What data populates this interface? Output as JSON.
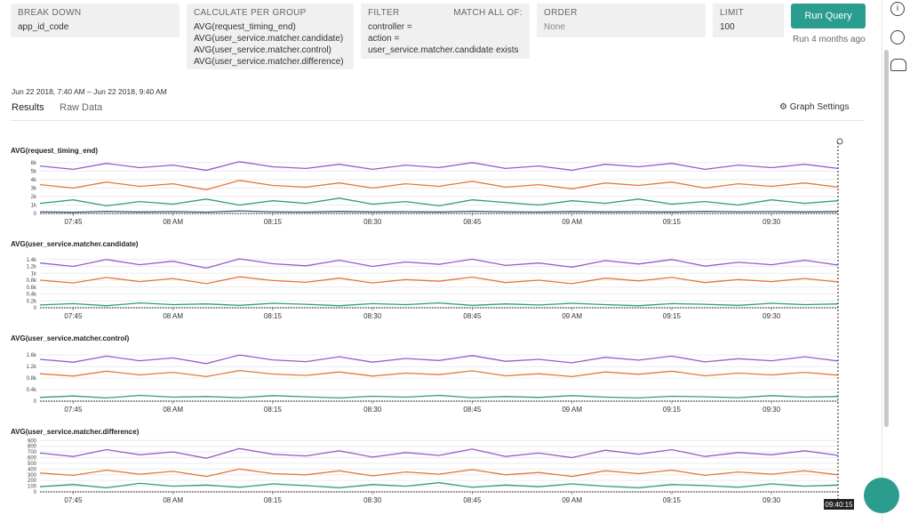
{
  "header": {
    "breakdown": {
      "label": "BREAK DOWN",
      "value": "app_id_code"
    },
    "calculate": {
      "label": "CALCULATE PER GROUP",
      "items": [
        "AVG(request_timing_end)",
        "AVG(user_service.matcher.candidate)",
        "AVG(user_service.matcher.control)",
        "AVG(user_service.matcher.difference)"
      ]
    },
    "filter": {
      "label": "FILTER",
      "match": "MATCH ALL OF:",
      "items": [
        "controller =",
        "action =",
        "user_service.matcher.candidate exists"
      ]
    },
    "order": {
      "label": "ORDER",
      "value": "None"
    },
    "limit": {
      "label": "LIMIT",
      "value": "100"
    },
    "run_button": "Run Query",
    "run_time": "Run 4 months ago"
  },
  "results": {
    "range": "Jun 22 2018, 7:40 AM – Jun 22 2018, 9:40 AM",
    "tabs": [
      "Results",
      "Raw Data"
    ],
    "settings": "Graph Settings",
    "cursor_time": "09:40:15"
  },
  "chart_data": [
    {
      "type": "line",
      "title": "AVG(request_timing_end)",
      "x": [
        "07:40",
        "07:45",
        "07:50",
        "07:55",
        "08:00",
        "08:05",
        "08:10",
        "08:15",
        "08:20",
        "08:25",
        "08:30",
        "08:35",
        "08:40",
        "08:45",
        "08:50",
        "08:55",
        "09:00",
        "09:05",
        "09:10",
        "09:15",
        "09:20",
        "09:25",
        "09:30",
        "09:35",
        "09:40"
      ],
      "xlim": [
        "07:40",
        "09:40"
      ],
      "xticks": [
        "07:45",
        {
          "value": "08:00",
          "label": "08 AM"
        },
        "08:15",
        "08:30",
        "08:45",
        {
          "value": "09:00",
          "label": "09 AM"
        },
        "09:15",
        "09:30"
      ],
      "ylim": [
        0,
        6500
      ],
      "yticks": [
        0,
        {
          "value": 1000,
          "label": "1k"
        },
        {
          "value": 2000,
          "label": "2k"
        },
        {
          "value": 3000,
          "label": "3k"
        },
        {
          "value": 4000,
          "label": "4k"
        },
        {
          "value": 5000,
          "label": "5k"
        },
        {
          "value": 6000,
          "label": "6k"
        }
      ],
      "series": [
        {
          "color": "#9b59c6",
          "values": [
            5600,
            5200,
            5900,
            5400,
            5700,
            5100,
            6100,
            5500,
            5300,
            5800,
            5200,
            5700,
            5400,
            6000,
            5300,
            5600,
            5100,
            5800,
            5500,
            5900,
            5200,
            5700,
            5400,
            5800,
            5300
          ]
        },
        {
          "color": "#e8743b",
          "values": [
            3400,
            3000,
            3700,
            3200,
            3500,
            2800,
            3900,
            3300,
            3100,
            3600,
            3000,
            3500,
            3200,
            3800,
            3100,
            3400,
            2900,
            3600,
            3300,
            3700,
            3000,
            3500,
            3200,
            3600,
            3100
          ]
        },
        {
          "color": "#2a9d7f",
          "values": [
            1200,
            1600,
            900,
            1400,
            1100,
            1700,
            1000,
            1500,
            1200,
            1800,
            1100,
            1400,
            900,
            1600,
            1300,
            1000,
            1500,
            1200,
            1700,
            1100,
            1400,
            1000,
            1600,
            1200,
            1500
          ]
        },
        {
          "color": "#3b5a8c",
          "values": [
            200,
            150,
            250,
            180,
            220,
            160,
            300,
            200,
            170,
            240,
            190,
            210,
            180,
            260,
            200,
            170,
            230,
            190,
            210,
            180,
            250,
            200,
            220,
            190,
            230
          ]
        }
      ]
    },
    {
      "type": "line",
      "title": "AVG(user_service.matcher.candidate)",
      "x": [
        "07:40",
        "07:45",
        "07:50",
        "07:55",
        "08:00",
        "08:05",
        "08:10",
        "08:15",
        "08:20",
        "08:25",
        "08:30",
        "08:35",
        "08:40",
        "08:45",
        "08:50",
        "08:55",
        "09:00",
        "09:05",
        "09:10",
        "09:15",
        "09:20",
        "09:25",
        "09:30",
        "09:35",
        "09:40"
      ],
      "xlim": [
        "07:40",
        "09:40"
      ],
      "xticks": [
        "07:45",
        {
          "value": "08:00",
          "label": "08 AM"
        },
        "08:15",
        "08:30",
        "08:45",
        {
          "value": "09:00",
          "label": "09 AM"
        },
        "09:15",
        "09:30"
      ],
      "ylim": [
        0,
        1550
      ],
      "yticks": [
        0,
        {
          "value": 200,
          "label": "0.2k"
        },
        {
          "value": 400,
          "label": "0.4k"
        },
        {
          "value": 600,
          "label": "0.6k"
        },
        {
          "value": 800,
          "label": "0.8k"
        },
        {
          "value": 1000,
          "label": "1k"
        },
        {
          "value": 1200,
          "label": "1.2k"
        },
        {
          "value": 1400,
          "label": "1.4k"
        }
      ],
      "series": [
        {
          "color": "#9b59c6",
          "values": [
            1300,
            1200,
            1400,
            1250,
            1350,
            1150,
            1420,
            1280,
            1220,
            1380,
            1200,
            1330,
            1260,
            1410,
            1230,
            1300,
            1180,
            1370,
            1270,
            1400,
            1210,
            1320,
            1250,
            1380,
            1240
          ]
        },
        {
          "color": "#e8743b",
          "values": [
            800,
            720,
            880,
            760,
            850,
            700,
            900,
            790,
            740,
            860,
            720,
            820,
            770,
            890,
            730,
            800,
            700,
            860,
            780,
            880,
            730,
            820,
            760,
            850,
            750
          ]
        },
        {
          "color": "#2a9d7f",
          "values": [
            80,
            120,
            60,
            140,
            90,
            110,
            70,
            130,
            100,
            60,
            120,
            90,
            140,
            70,
            110,
            80,
            130,
            90,
            60,
            120,
            100,
            70,
            130,
            90,
            110
          ]
        }
      ]
    },
    {
      "type": "line",
      "title": "AVG(user_service.matcher.control)",
      "x": [
        "07:40",
        "07:45",
        "07:50",
        "07:55",
        "08:00",
        "08:05",
        "08:10",
        "08:15",
        "08:20",
        "08:25",
        "08:30",
        "08:35",
        "08:40",
        "08:45",
        "08:50",
        "08:55",
        "09:00",
        "09:05",
        "09:10",
        "09:15",
        "09:20",
        "09:25",
        "09:30",
        "09:35",
        "09:40"
      ],
      "xlim": [
        "07:40",
        "09:40"
      ],
      "xticks": [
        "07:45",
        {
          "value": "08:00",
          "label": "08 AM"
        },
        "08:15",
        "08:30",
        "08:45",
        {
          "value": "09:00",
          "label": "09 AM"
        },
        "09:15",
        "09:30"
      ],
      "ylim": [
        0,
        1850
      ],
      "yticks": [
        0,
        {
          "value": 400,
          "label": "0.4k"
        },
        {
          "value": 800,
          "label": "0.8k"
        },
        {
          "value": 1200,
          "label": "1.2k"
        },
        {
          "value": 1600,
          "label": "1.6k"
        }
      ],
      "series": [
        {
          "color": "#9b59c6",
          "values": [
            1450,
            1350,
            1560,
            1400,
            1500,
            1300,
            1600,
            1430,
            1370,
            1540,
            1350,
            1480,
            1410,
            1580,
            1380,
            1450,
            1330,
            1520,
            1420,
            1560,
            1360,
            1470,
            1400,
            1540,
            1390
          ]
        },
        {
          "color": "#e8743b",
          "values": [
            950,
            870,
            1040,
            910,
            1000,
            850,
            1060,
            940,
            890,
            1010,
            870,
            970,
            920,
            1050,
            880,
            950,
            850,
            1010,
            930,
            1040,
            880,
            970,
            910,
            1000,
            900
          ]
        },
        {
          "color": "#2a9d7f",
          "values": [
            130,
            180,
            110,
            200,
            140,
            160,
            120,
            190,
            150,
            110,
            170,
            140,
            200,
            120,
            160,
            130,
            190,
            140,
            110,
            170,
            150,
            120,
            190,
            140,
            160
          ]
        }
      ]
    },
    {
      "type": "line",
      "title": "AVG(user_service.matcher.difference)",
      "x": [
        "07:40",
        "07:45",
        "07:50",
        "07:55",
        "08:00",
        "08:05",
        "08:10",
        "08:15",
        "08:20",
        "08:25",
        "08:30",
        "08:35",
        "08:40",
        "08:45",
        "08:50",
        "08:55",
        "09:00",
        "09:05",
        "09:10",
        "09:15",
        "09:20",
        "09:25",
        "09:30",
        "09:35",
        "09:40"
      ],
      "xlim": [
        "07:40",
        "09:40"
      ],
      "xticks": [
        "07:45",
        {
          "value": "08:00",
          "label": "08 AM"
        },
        "08:15",
        "08:30",
        "08:45",
        {
          "value": "09:00",
          "label": "09 AM"
        },
        "09:15",
        "09:30"
      ],
      "ylim": [
        0,
        920
      ],
      "yticks": [
        0,
        100,
        200,
        300,
        400,
        500,
        600,
        700,
        800,
        900
      ],
      "series": [
        {
          "color": "#9b59c6",
          "values": [
            680,
            620,
            740,
            650,
            700,
            590,
            760,
            660,
            630,
            720,
            610,
            690,
            640,
            750,
            620,
            680,
            600,
            730,
            660,
            740,
            620,
            690,
            650,
            720,
            640
          ]
        },
        {
          "color": "#e8743b",
          "values": [
            330,
            290,
            380,
            310,
            360,
            270,
            400,
            320,
            300,
            370,
            280,
            350,
            310,
            390,
            300,
            340,
            270,
            370,
            320,
            380,
            290,
            350,
            310,
            370,
            300
          ]
        },
        {
          "color": "#2a9d7f",
          "values": [
            90,
            130,
            70,
            150,
            100,
            120,
            80,
            140,
            110,
            70,
            130,
            100,
            160,
            80,
            120,
            90,
            140,
            100,
            70,
            130,
            110,
            80,
            140,
            100,
            120
          ]
        }
      ]
    }
  ]
}
